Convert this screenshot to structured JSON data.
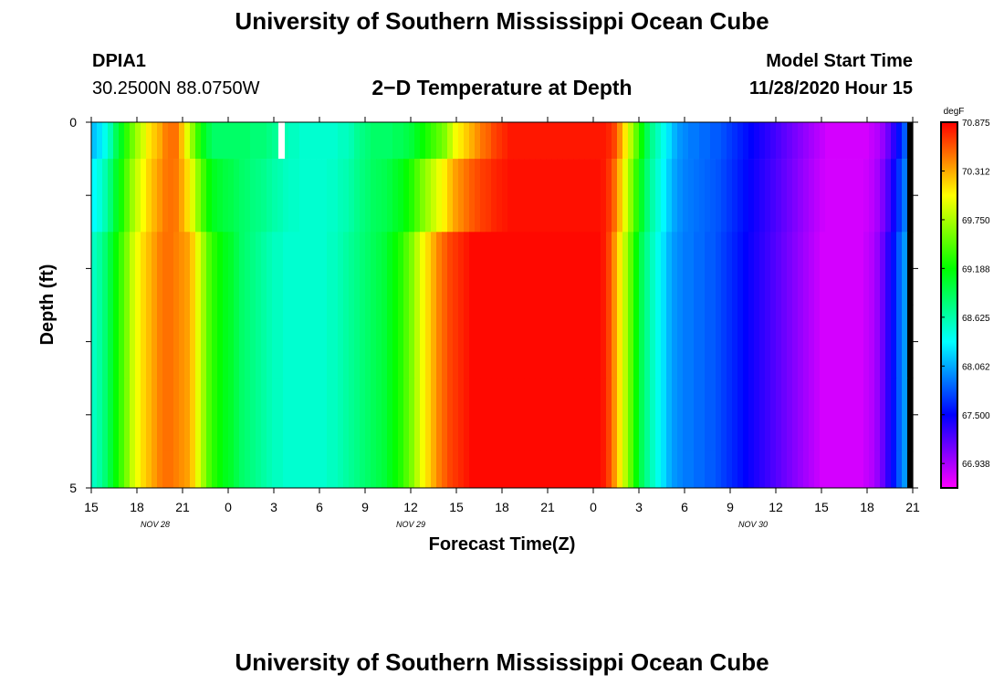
{
  "header": {
    "title": "University of Southern Mississippi Ocean Cube",
    "station_id": "DPIA1",
    "station_coords": "30.2500N 88.0750W",
    "plot_title": "2−D Temperature at Depth",
    "model_start_label": "Model Start Time",
    "model_start_value": "11/28/2020 Hour 15"
  },
  "footer": {
    "title": "University of Southern Mississippi Ocean Cube"
  },
  "chart_data": {
    "type": "heatmap",
    "title": "2−D Temperature at Depth",
    "xlabel": "Forecast Time(Z)",
    "ylabel": "Depth (ft)",
    "x_tick_labels": [
      "15",
      "18",
      "21",
      "0",
      "3",
      "6",
      "9",
      "12",
      "15",
      "18",
      "21",
      "0",
      "3",
      "6",
      "9",
      "12",
      "15",
      "18",
      "21"
    ],
    "date_labels": [
      {
        "text": "NOV  28",
        "tick_index": 1.4
      },
      {
        "text": "NOV  29",
        "tick_index": 7
      },
      {
        "text": "NOV  30",
        "tick_index": 14.5
      }
    ],
    "y_tick_labels": [
      "0",
      "5"
    ],
    "y_range_ft": [
      0,
      5
    ],
    "depth_levels_ft": [
      0.25,
      1.0,
      2.0,
      3.0,
      4.0,
      4.75
    ],
    "depth_boundaries_ft": [
      0,
      0.5,
      1.5,
      2.5,
      3.5,
      4.5,
      5.0
    ],
    "x_range_hours": [
      0,
      54
    ],
    "colorbar": {
      "unit": "degF",
      "min": 66.656,
      "max": 70.875,
      "tick_labels": [
        "70.875",
        "70.312",
        "69.750",
        "69.188",
        "68.625",
        "68.062",
        "67.500",
        "66.938"
      ],
      "tick_values": [
        70.875,
        70.312,
        69.75,
        69.188,
        68.625,
        68.062,
        67.5,
        66.938
      ]
    },
    "missing_cells": [
      {
        "time_index": 34,
        "depth_index": 0
      }
    ],
    "surface_temps_degF": [
      68.15,
      68.25,
      68.4,
      68.6,
      68.9,
      69.1,
      69.35,
      69.55,
      69.75,
      69.9,
      70.1,
      70.2,
      70.3,
      70.45,
      70.5,
      70.5,
      70.25,
      69.95,
      69.65,
      69.35,
      69.1,
      68.95,
      68.85,
      68.85,
      68.85,
      68.85,
      68.85,
      68.85,
      68.85,
      68.8,
      68.8,
      68.8,
      68.75,
      68.7,
      68.65,
      68.6,
      68.55,
      68.55,
      68.5,
      68.5,
      68.5,
      68.5,
      68.5,
      68.5,
      68.5,
      68.55,
      68.55,
      68.6,
      68.7,
      68.75,
      68.8,
      68.85,
      68.85,
      68.85,
      68.85,
      68.9,
      68.9,
      68.95,
      69.0,
      69.1,
      69.2,
      69.3,
      69.4,
      69.5,
      69.6,
      69.8,
      70.0,
      70.1,
      70.2,
      70.3,
      70.4,
      70.5,
      70.55,
      70.65,
      70.7,
      70.75,
      70.8,
      70.8,
      70.8,
      70.8,
      70.8,
      70.8,
      70.8,
      70.8,
      70.8,
      70.8,
      70.8,
      70.8,
      70.8,
      70.8,
      70.8,
      70.8,
      70.8,
      70.8,
      70.75,
      70.65,
      70.4,
      70.1,
      69.8,
      69.5,
      69.2,
      68.9,
      68.7,
      68.55,
      68.4,
      68.25,
      68.1,
      68.0,
      67.95,
      67.9,
      67.9,
      67.85,
      67.85,
      67.8,
      67.8,
      67.75,
      67.7,
      67.65,
      67.6,
      67.55,
      67.5,
      67.45,
      67.4,
      67.35,
      67.3,
      67.25,
      67.2,
      67.15,
      67.1,
      67.05,
      67.0,
      66.95,
      66.9,
      66.85,
      66.8,
      66.8,
      66.8,
      66.8,
      66.8,
      66.8,
      66.8,
      66.8,
      66.85,
      66.9,
      67.0,
      67.15,
      67.35,
      67.55,
      67.8,
      68.0
    ],
    "mid_temps_degF": [
      68.55,
      68.65,
      68.8,
      69.0,
      69.2,
      69.4,
      69.6,
      69.85,
      70.0,
      70.15,
      70.25,
      70.35,
      70.45,
      70.5,
      70.5,
      70.45,
      70.4,
      70.35,
      70.2,
      69.95,
      69.7,
      69.45,
      69.3,
      69.2,
      69.1,
      69.05,
      68.95,
      68.85,
      68.8,
      68.75,
      68.7,
      68.65,
      68.6,
      68.55,
      68.55,
      68.5,
      68.5,
      68.5,
      68.5,
      68.5,
      68.5,
      68.5,
      68.5,
      68.55,
      68.55,
      68.6,
      68.65,
      68.7,
      68.75,
      68.8,
      68.85,
      68.9,
      68.95,
      69.0,
      69.1,
      69.2,
      69.3,
      69.45,
      69.6,
      69.8,
      70.0,
      70.15,
      70.3,
      70.45,
      70.55,
      70.65,
      70.7,
      70.75,
      70.8,
      70.85,
      70.85,
      70.85,
      70.85,
      70.85,
      70.85,
      70.85,
      70.85,
      70.85,
      70.85,
      70.85,
      70.85,
      70.85,
      70.85,
      70.85,
      70.85,
      70.85,
      70.85,
      70.85,
      70.85,
      70.85,
      70.85,
      70.85,
      70.85,
      70.8,
      70.65,
      70.4,
      70.1,
      69.8,
      69.5,
      69.2,
      68.9,
      68.7,
      68.55,
      68.4,
      68.25,
      68.1,
      68.0,
      67.95,
      67.9,
      67.9,
      67.85,
      67.85,
      67.8,
      67.8,
      67.75,
      67.7,
      67.65,
      67.6,
      67.55,
      67.5,
      67.45,
      67.4,
      67.35,
      67.3,
      67.25,
      67.2,
      67.15,
      67.1,
      67.05,
      67.0,
      66.95,
      66.9,
      66.85,
      66.8,
      66.8,
      66.8,
      66.8,
      66.8,
      66.8,
      66.8,
      66.8,
      66.85,
      66.9,
      67.0,
      67.15,
      67.35,
      67.55,
      67.8,
      68.0
    ]
  }
}
